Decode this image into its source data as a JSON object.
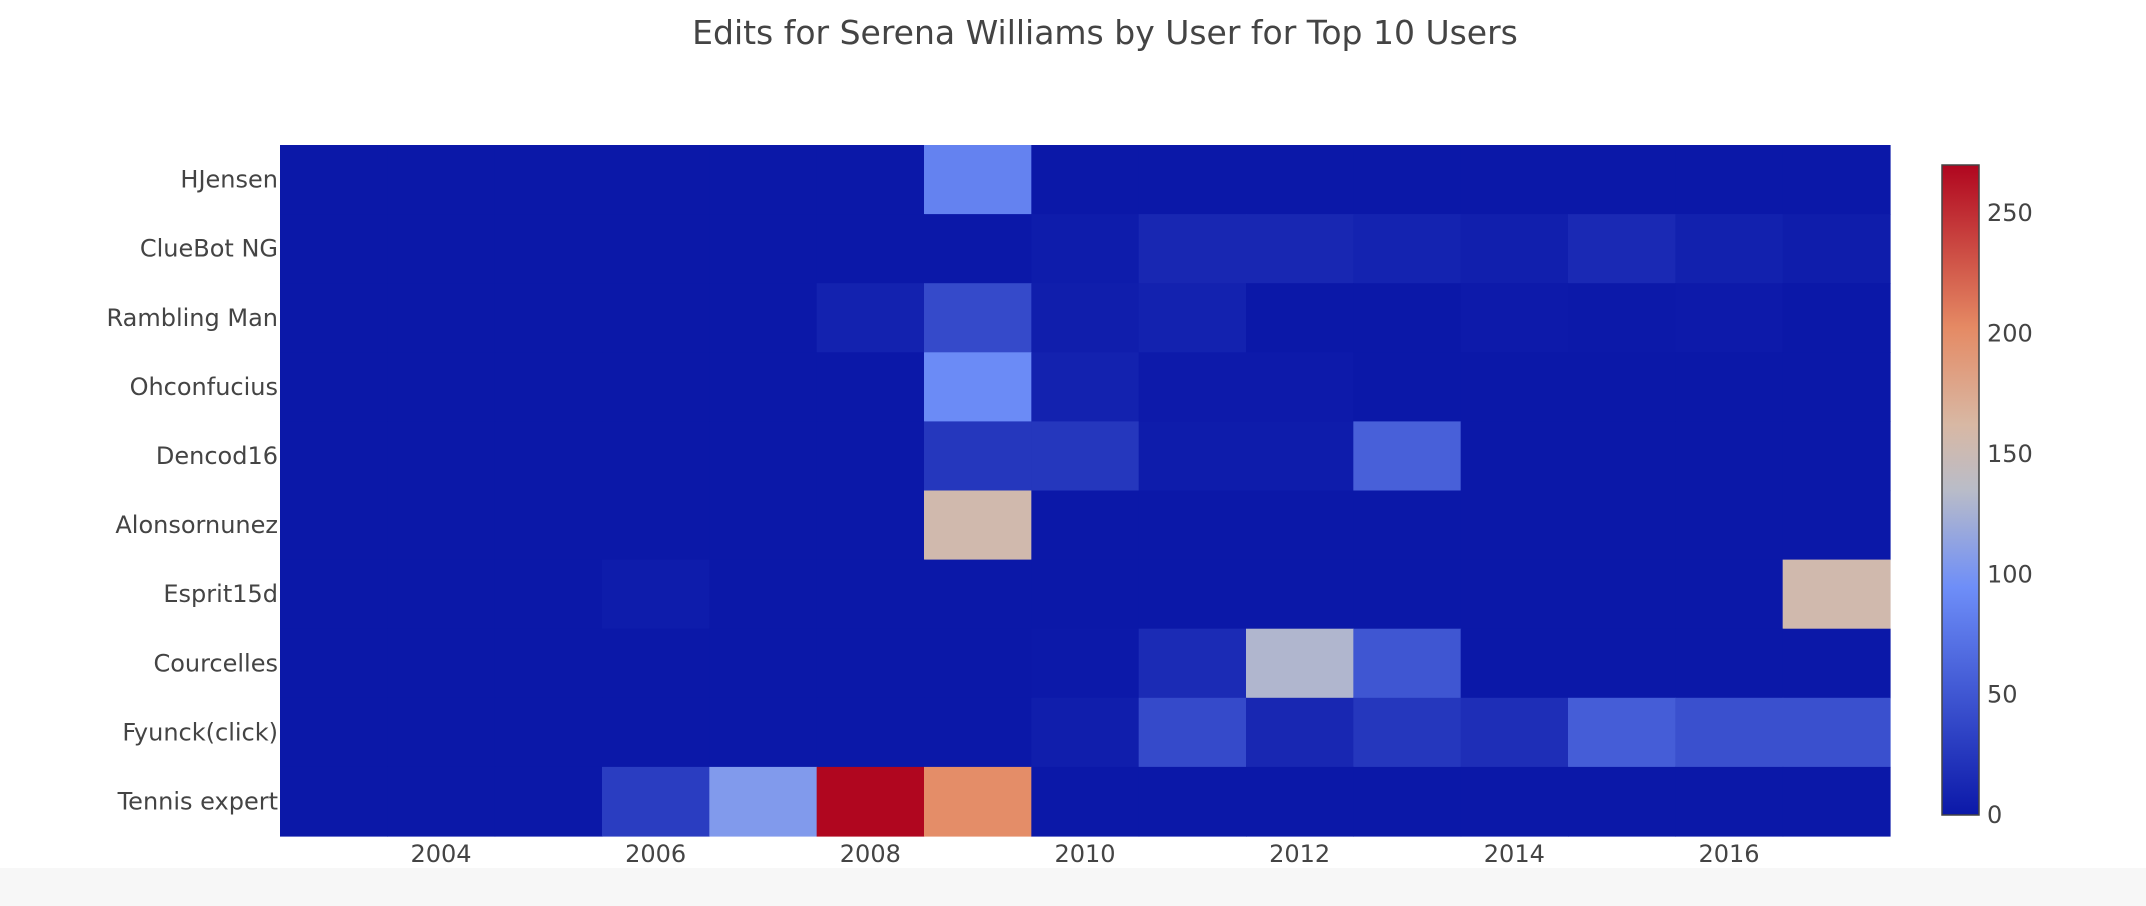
{
  "chart_data": {
    "type": "heatmap",
    "title": "Edits for Serena Williams by User for Top 10 Users",
    "xlabel": "",
    "ylabel": "",
    "x": [
      2003,
      2004,
      2005,
      2006,
      2007,
      2008,
      2009,
      2010,
      2011,
      2012,
      2013,
      2014,
      2015,
      2016,
      2017
    ],
    "x_tick_labels": [
      "2004",
      "2006",
      "2008",
      "2010",
      "2012",
      "2014",
      "2016"
    ],
    "y": [
      "HJensen",
      "ClueBot NG",
      "Rambling Man",
      "Ohconfucius",
      "Dencod16",
      "Alonsornunez",
      "Esprit15d",
      "Courcelles",
      "Fyunck(click)",
      "Tennis expert"
    ],
    "z": [
      [
        0,
        0,
        0,
        0,
        0,
        0,
        85,
        0,
        0,
        0,
        0,
        0,
        0,
        0,
        0
      ],
      [
        0,
        0,
        0,
        0,
        0,
        0,
        0,
        3,
        12,
        12,
        9,
        6,
        14,
        7,
        4
      ],
      [
        0,
        0,
        0,
        0,
        0,
        8,
        40,
        5,
        8,
        0,
        0,
        2,
        1,
        2,
        0
      ],
      [
        0,
        0,
        0,
        0,
        0,
        0,
        92,
        8,
        2,
        2,
        0,
        0,
        0,
        0,
        0
      ],
      [
        0,
        0,
        0,
        0,
        0,
        0,
        25,
        25,
        3,
        3,
        58,
        0,
        0,
        0,
        0
      ],
      [
        0,
        0,
        0,
        0,
        0,
        0,
        155,
        0,
        0,
        0,
        0,
        0,
        0,
        0,
        0
      ],
      [
        0,
        0,
        0,
        3,
        0,
        0,
        0,
        0,
        0,
        0,
        0,
        0,
        0,
        0,
        155
      ],
      [
        0,
        0,
        0,
        0,
        0,
        0,
        0,
        1,
        15,
        130,
        50,
        0,
        0,
        0,
        0
      ],
      [
        0,
        0,
        0,
        0,
        0,
        0,
        0,
        5,
        40,
        12,
        25,
        18,
        55,
        45,
        45
      ],
      [
        0,
        0,
        0,
        30,
        105,
        270,
        200,
        0,
        0,
        0,
        0,
        0,
        0,
        0,
        0
      ]
    ],
    "zmin": 0,
    "zmax": 270,
    "colorbar_ticks": [
      "0",
      "50",
      "100",
      "150",
      "200",
      "250"
    ],
    "colorscale": [
      [
        0.0,
        "#0b18a8"
      ],
      [
        0.35,
        "#6e8ef8"
      ],
      [
        0.5,
        "#b9bcc8"
      ],
      [
        0.6,
        "#d8b8a4"
      ],
      [
        0.75,
        "#e58a64"
      ],
      [
        1.0,
        "#b0061f"
      ]
    ]
  }
}
